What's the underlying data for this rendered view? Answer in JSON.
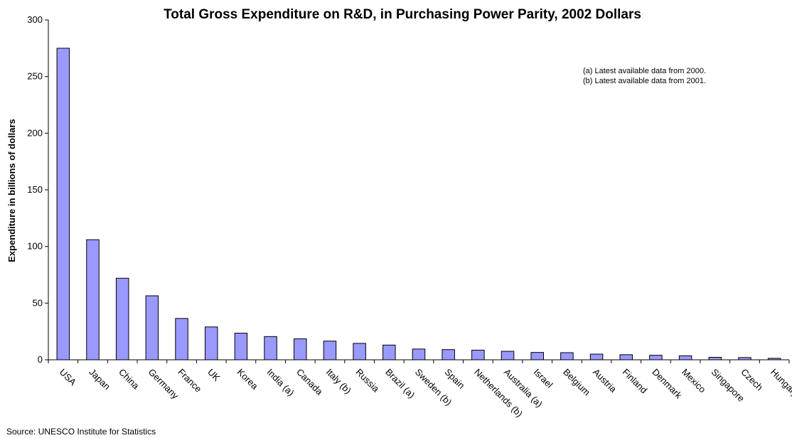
{
  "chart_data": {
    "type": "bar",
    "title": "Total Gross Expenditure on R&D, in Purchasing Power Parity, 2002 Dollars",
    "xlabel": "",
    "ylabel": "Expenditure in billions of dollars",
    "ylim": [
      0,
      300
    ],
    "yticks": [
      0,
      50,
      100,
      150,
      200,
      250,
      300
    ],
    "grid": false,
    "bar_color": "#9999ff",
    "categories": [
      "USA",
      "Japan",
      "China",
      "Germany",
      "France",
      "UK",
      "Korea",
      "India (a)",
      "Canada",
      "Italy (b)",
      "Russia",
      "Brazil (a)",
      "Sweden (b)",
      "Spain",
      "Netherlands (b)",
      "Australia (a)",
      "Israel",
      "Belgium",
      "Austria",
      "Finland",
      "Denmark",
      "Mexico",
      "Singapore",
      "Czech",
      "Hungary"
    ],
    "values": [
      275,
      106,
      72,
      56.5,
      36.5,
      29,
      23.5,
      20.5,
      18.5,
      16.5,
      14.5,
      13,
      9.5,
      9,
      8.5,
      7.5,
      6.5,
      6.3,
      5,
      4.5,
      4,
      3.5,
      2.2,
      2,
      1.3
    ],
    "annotations": [
      "(a) Latest available data from 2000.",
      "(b) Latest available data from 2001."
    ],
    "source": "Source: UNESCO Institute for Statistics"
  }
}
